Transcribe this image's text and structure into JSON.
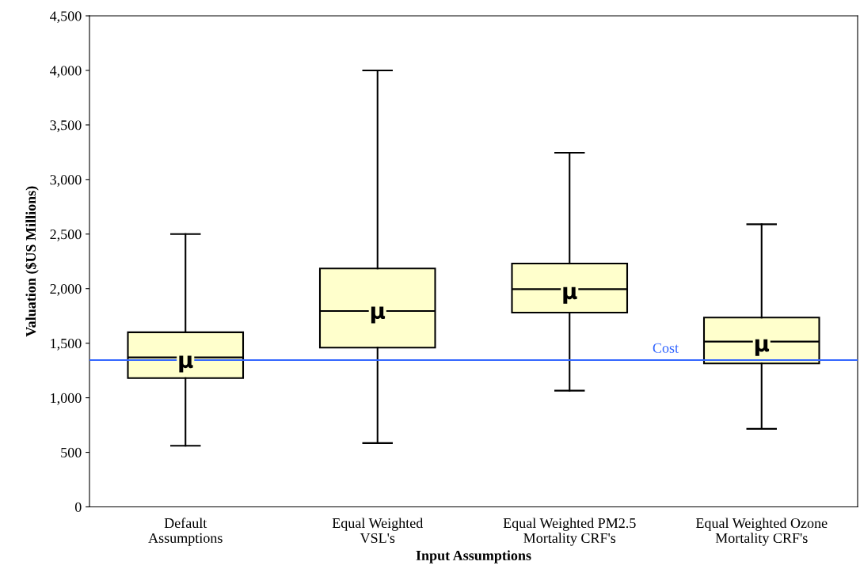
{
  "chart_data": {
    "type": "box",
    "xlabel": "Input Assumptions",
    "ylabel": "Valuation ($US Millions)",
    "categories": [
      "Default\nAssumptions",
      "Equal Weighted\nVSL's",
      "Equal Weighted PM2.5\nMortality CRF's",
      "Equal Weighted Ozone\nMortality CRF's"
    ],
    "boxes": [
      {
        "low": 560,
        "q1": 1180,
        "median": 1370,
        "q3": 1600,
        "high": 2500
      },
      {
        "low": 585,
        "q1": 1460,
        "median": 1795,
        "q3": 2185,
        "high": 4000
      },
      {
        "low": 1065,
        "q1": 1780,
        "median": 1995,
        "q3": 2230,
        "high": 3245
      },
      {
        "low": 715,
        "q1": 1315,
        "median": 1515,
        "q3": 1735,
        "high": 2590
      }
    ],
    "annotations": [
      {
        "text": "μ",
        "x": "Default\nAssumptions",
        "y": 1330
      },
      {
        "text": "μ",
        "x": "Equal Weighted\nVSL's",
        "y": 1780
      },
      {
        "text": "μ",
        "x": "Equal Weighted PM2.5\nMortality CRF's",
        "y": 1960
      },
      {
        "text": "μ",
        "x": "Equal Weighted Ozone\nMortality CRF's",
        "y": 1480
      }
    ],
    "color": "#ffffcc",
    "ylim": [
      0,
      4500
    ],
    "yticks": [
      0,
      {
        "value": 500,
        "label": "500"
      },
      {
        "value": 1000,
        "label": "1,000"
      },
      {
        "value": 1500,
        "label": "1,500"
      },
      {
        "value": 2000,
        "label": "2,000"
      },
      {
        "value": 2500,
        "label": "2,500"
      },
      {
        "value": 3000,
        "label": "3,000"
      },
      {
        "value": 3500,
        "label": "3,500"
      },
      {
        "value": 4000,
        "label": "4,000"
      },
      {
        "value": 4500,
        "label": "4,500"
      }
    ],
    "ref_lines": [
      {
        "axis": "y",
        "value": 1345,
        "label": "Cost",
        "color": "#3366ff"
      }
    ],
    "grid": false,
    "legend": false
  }
}
